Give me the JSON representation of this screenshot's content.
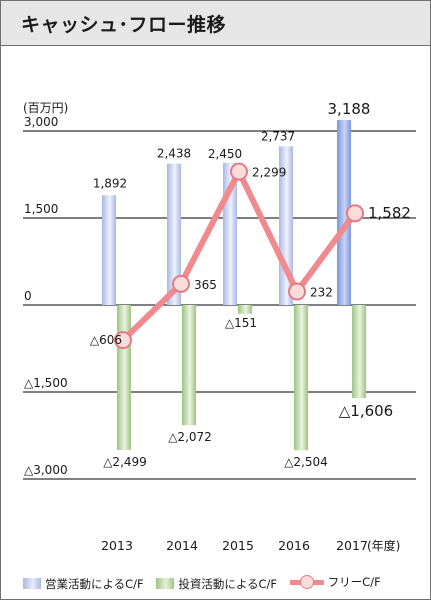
{
  "title": "キャッシュ･フロー推移",
  "unit_label": "(百万円)",
  "year_suffix": "(年度)",
  "colors": {
    "operating": "#a8b8e6",
    "operating_highlight": "#7a96dd",
    "investing": "#9cc57f",
    "free": "#f08a8e",
    "free_dot_fill": "#fbdcdc"
  },
  "chart_data": {
    "type": "bar",
    "categories": [
      "2013",
      "2014",
      "2015",
      "2016",
      "2017"
    ],
    "series": [
      {
        "name": "営業活動によるC/F",
        "values": [
          1892,
          2438,
          2450,
          2737,
          3188
        ],
        "labels": [
          "1,892",
          "2,438",
          "2,450",
          "2,737",
          "3,188"
        ]
      },
      {
        "name": "投資活動によるC/F",
        "values": [
          -2499,
          -2072,
          -151,
          -2504,
          -1606
        ],
        "labels": [
          "△2,499",
          "△2,072",
          "△151",
          "△2,504",
          "△1,606"
        ]
      },
      {
        "name": "フリーC/F",
        "type": "line",
        "values": [
          -606,
          365,
          2299,
          232,
          1582
        ],
        "labels": [
          "△606",
          "365",
          "2,299",
          "232",
          "1,582"
        ]
      }
    ],
    "yticks": [
      3000,
      1500,
      0,
      -1500,
      -3000
    ],
    "ytick_labels": [
      "3,000",
      "1,500",
      "0",
      "△1,500",
      "△3,000"
    ],
    "ylim": [
      -3000,
      3000
    ],
    "grid": true,
    "legend": "bottom"
  }
}
